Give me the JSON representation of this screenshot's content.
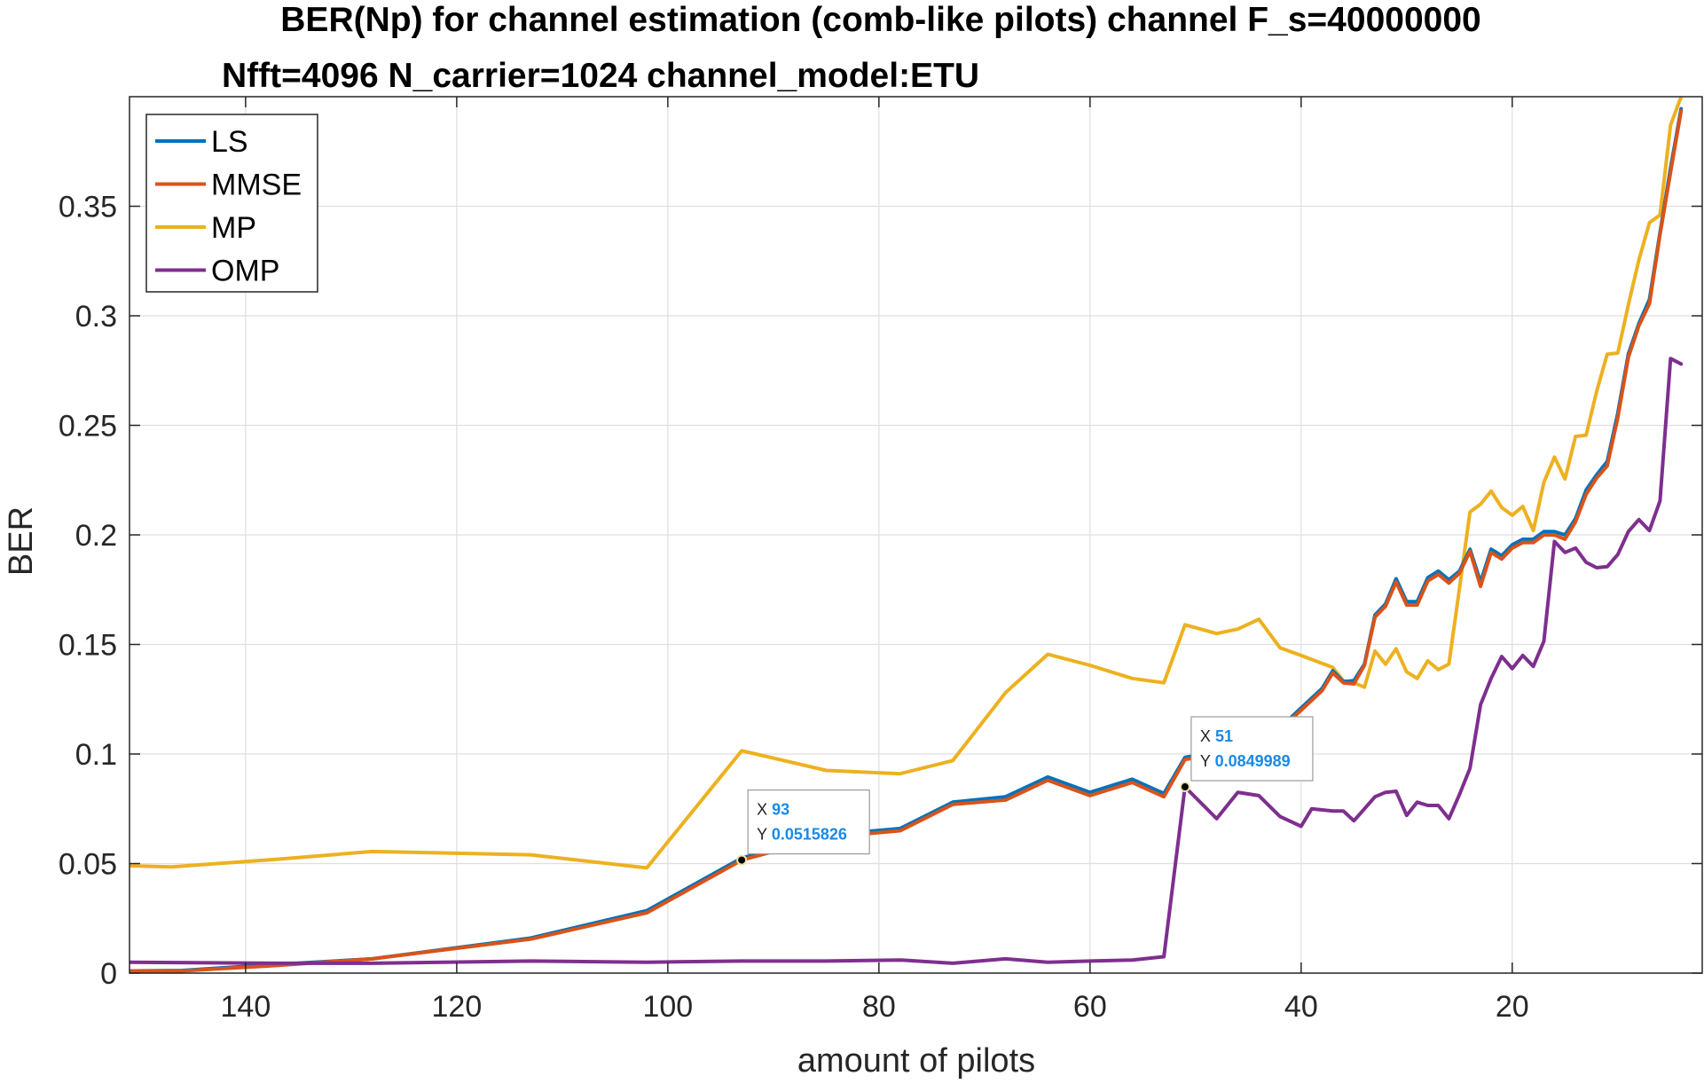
{
  "chart_data": {
    "type": "line",
    "title_line1": "BER(Np) for channel estimation (comb-like pilots) channel F_s=40000000",
    "title_line2": "Nfft=4096 N_carrier=1024 channel_model:ETU",
    "xlabel": "amount of pilots",
    "ylabel": "BER",
    "xlim": [
      151,
      2
    ],
    "ylim": [
      0,
      0.4
    ],
    "x_reversed": true,
    "grid": true,
    "legend_position": "top-left",
    "x_ticks": [
      140,
      120,
      100,
      80,
      60,
      40,
      20
    ],
    "y_ticks": [
      0,
      0.05,
      0.1,
      0.15,
      0.2,
      0.25,
      0.3,
      0.35
    ],
    "x_tick_labels": [
      "140",
      "120",
      "100",
      "80",
      "60",
      "40",
      "20"
    ],
    "y_tick_labels": [
      "0",
      "0.05",
      "0.1",
      "0.15",
      "0.2",
      "0.25",
      "0.3",
      "0.35"
    ],
    "series": [
      {
        "name": "LS",
        "color": "#0072bd",
        "points": [
          [
            151,
            0.001
          ],
          [
            146,
            0.0012
          ],
          [
            137,
            0.004
          ],
          [
            128,
            0.0065
          ],
          [
            113,
            0.016
          ],
          [
            102,
            0.0285
          ],
          [
            93,
            0.0525
          ],
          [
            85,
            0.063
          ],
          [
            78,
            0.066
          ],
          [
            73,
            0.078
          ],
          [
            68,
            0.0805
          ],
          [
            64,
            0.0895
          ],
          [
            60,
            0.0825
          ],
          [
            56,
            0.0885
          ],
          [
            53,
            0.082
          ],
          [
            51,
            0.0985
          ],
          [
            49,
            0.1
          ],
          [
            46,
            0.1045
          ],
          [
            44,
            0.108
          ],
          [
            42,
            0.112
          ],
          [
            40,
            0.121
          ],
          [
            38,
            0.13
          ],
          [
            37,
            0.138
          ],
          [
            36,
            0.133
          ],
          [
            35,
            0.1335
          ],
          [
            34,
            0.141
          ],
          [
            33,
            0.1635
          ],
          [
            32,
            0.1685
          ],
          [
            31,
            0.18
          ],
          [
            30,
            0.1695
          ],
          [
            29,
            0.1695
          ],
          [
            28,
            0.1805
          ],
          [
            27,
            0.1835
          ],
          [
            26,
            0.1795
          ],
          [
            25,
            0.1835
          ],
          [
            24,
            0.1935
          ],
          [
            23,
            0.1785
          ],
          [
            22,
            0.1935
          ],
          [
            21,
            0.1905
          ],
          [
            20,
            0.1955
          ],
          [
            19,
            0.198
          ],
          [
            18,
            0.198
          ],
          [
            17,
            0.2015
          ],
          [
            16,
            0.2015
          ],
          [
            15,
            0.2
          ],
          [
            14,
            0.2075
          ],
          [
            13,
            0.2205
          ],
          [
            12,
            0.2275
          ],
          [
            11,
            0.2335
          ],
          [
            10,
            0.2555
          ],
          [
            9,
            0.2825
          ],
          [
            8,
            0.2965
          ],
          [
            7,
            0.3075
          ],
          [
            6,
            0.338
          ],
          [
            5,
            0.3675
          ],
          [
            4,
            0.3945
          ]
        ]
      },
      {
        "name": "MMSE",
        "color": "#d95319",
        "points": [
          [
            151,
            0.001
          ],
          [
            146,
            0.001
          ],
          [
            137,
            0.0035
          ],
          [
            128,
            0.0065
          ],
          [
            113,
            0.0155
          ],
          [
            102,
            0.0275
          ],
          [
            93,
            0.0515826
          ],
          [
            85,
            0.062
          ],
          [
            78,
            0.065
          ],
          [
            73,
            0.077
          ],
          [
            68,
            0.079
          ],
          [
            64,
            0.088
          ],
          [
            60,
            0.081
          ],
          [
            56,
            0.087
          ],
          [
            53,
            0.0805
          ],
          [
            51,
            0.0975
          ],
          [
            49,
            0.099
          ],
          [
            46,
            0.1035
          ],
          [
            44,
            0.107
          ],
          [
            42,
            0.111
          ],
          [
            40,
            0.12
          ],
          [
            38,
            0.129
          ],
          [
            37,
            0.137
          ],
          [
            36,
            0.1325
          ],
          [
            35,
            0.132
          ],
          [
            34,
            0.1405
          ],
          [
            33,
            0.1625
          ],
          [
            32,
            0.1675
          ],
          [
            31,
            0.1785
          ],
          [
            30,
            0.168
          ],
          [
            29,
            0.168
          ],
          [
            28,
            0.179
          ],
          [
            27,
            0.182
          ],
          [
            26,
            0.178
          ],
          [
            25,
            0.1825
          ],
          [
            24,
            0.1925
          ],
          [
            23,
            0.1765
          ],
          [
            22,
            0.192
          ],
          [
            21,
            0.189
          ],
          [
            20,
            0.194
          ],
          [
            19,
            0.1965
          ],
          [
            18,
            0.1965
          ],
          [
            17,
            0.2
          ],
          [
            16,
            0.2
          ],
          [
            15,
            0.198
          ],
          [
            14,
            0.206
          ],
          [
            13,
            0.2185
          ],
          [
            12,
            0.226
          ],
          [
            11,
            0.2315
          ],
          [
            10,
            0.2535
          ],
          [
            9,
            0.281
          ],
          [
            8,
            0.2955
          ],
          [
            7,
            0.3055
          ],
          [
            6,
            0.337
          ],
          [
            5,
            0.3655
          ],
          [
            4,
            0.3935
          ]
        ]
      },
      {
        "name": "MP",
        "color": "#edb120",
        "points": [
          [
            151,
            0.049
          ],
          [
            147,
            0.0485
          ],
          [
            137,
            0.052
          ],
          [
            128,
            0.0555
          ],
          [
            113,
            0.054
          ],
          [
            102,
            0.048
          ],
          [
            93,
            0.1015
          ],
          [
            85,
            0.0925
          ],
          [
            78,
            0.091
          ],
          [
            73,
            0.097
          ],
          [
            68,
            0.128
          ],
          [
            64,
            0.1455
          ],
          [
            60,
            0.1405
          ],
          [
            56,
            0.1345
          ],
          [
            53,
            0.1325
          ],
          [
            51,
            0.159
          ],
          [
            48,
            0.155
          ],
          [
            46,
            0.157
          ],
          [
            44,
            0.1615
          ],
          [
            42,
            0.1485
          ],
          [
            40,
            0.145
          ],
          [
            37,
            0.1395
          ],
          [
            36,
            0.1335
          ],
          [
            35,
            0.1325
          ],
          [
            34,
            0.1305
          ],
          [
            33,
            0.147
          ],
          [
            32,
            0.141
          ],
          [
            31,
            0.148
          ],
          [
            30,
            0.1375
          ],
          [
            29,
            0.1345
          ],
          [
            28,
            0.1425
          ],
          [
            27,
            0.1385
          ],
          [
            26,
            0.141
          ],
          [
            25,
            0.1755
          ],
          [
            24,
            0.2105
          ],
          [
            23,
            0.214
          ],
          [
            22,
            0.22
          ],
          [
            21,
            0.2125
          ],
          [
            20,
            0.209
          ],
          [
            19,
            0.213
          ],
          [
            18,
            0.202
          ],
          [
            17,
            0.224
          ],
          [
            16,
            0.2355
          ],
          [
            15,
            0.2255
          ],
          [
            14,
            0.245
          ],
          [
            13,
            0.2455
          ],
          [
            12,
            0.2655
          ],
          [
            11,
            0.2825
          ],
          [
            10,
            0.283
          ],
          [
            9,
            0.305
          ],
          [
            8,
            0.3255
          ],
          [
            7,
            0.3425
          ],
          [
            6,
            0.346
          ],
          [
            5,
            0.387
          ],
          [
            4,
            0.4
          ]
        ]
      },
      {
        "name": "OMP",
        "color": "#7e2f8e",
        "points": [
          [
            151,
            0.005
          ],
          [
            137,
            0.0045
          ],
          [
            128,
            0.0045
          ],
          [
            113,
            0.0055
          ],
          [
            102,
            0.005
          ],
          [
            93,
            0.0055
          ],
          [
            85,
            0.0055
          ],
          [
            78,
            0.006
          ],
          [
            73,
            0.0045
          ],
          [
            68,
            0.0065
          ],
          [
            64,
            0.005
          ],
          [
            60,
            0.0055
          ],
          [
            56,
            0.006
          ],
          [
            53,
            0.0075
          ],
          [
            51,
            0.0849989
          ],
          [
            48,
            0.0705
          ],
          [
            46,
            0.0825
          ],
          [
            44,
            0.081
          ],
          [
            42,
            0.0715
          ],
          [
            40,
            0.067
          ],
          [
            39,
            0.075
          ],
          [
            38,
            0.0745
          ],
          [
            37,
            0.074
          ],
          [
            36,
            0.074
          ],
          [
            35,
            0.0695
          ],
          [
            34,
            0.075
          ],
          [
            33,
            0.0805
          ],
          [
            32,
            0.0825
          ],
          [
            31,
            0.083
          ],
          [
            30,
            0.072
          ],
          [
            29,
            0.078
          ],
          [
            28,
            0.0765
          ],
          [
            27,
            0.0765
          ],
          [
            26,
            0.0705
          ],
          [
            25,
            0.0815
          ],
          [
            24,
            0.0935
          ],
          [
            23,
            0.1225
          ],
          [
            22,
            0.1345
          ],
          [
            21,
            0.1445
          ],
          [
            20,
            0.139
          ],
          [
            19,
            0.145
          ],
          [
            18,
            0.14
          ],
          [
            17,
            0.1515
          ],
          [
            16,
            0.197
          ],
          [
            15,
            0.192
          ],
          [
            14,
            0.194
          ],
          [
            13,
            0.1875
          ],
          [
            12,
            0.185
          ],
          [
            11,
            0.1855
          ],
          [
            10,
            0.191
          ],
          [
            9,
            0.2015
          ],
          [
            8,
            0.207
          ],
          [
            7,
            0.202
          ],
          [
            6,
            0.2155
          ],
          [
            5,
            0.2805
          ],
          [
            4,
            0.278
          ]
        ]
      }
    ],
    "datatips": [
      {
        "x": 93,
        "y": 0.0515826,
        "x_label": "X",
        "y_label": "Y",
        "x_text": "93",
        "y_text": "0.0515826"
      },
      {
        "x": 51,
        "y": 0.0849989,
        "x_label": "X",
        "y_label": "Y",
        "x_text": "51",
        "y_text": "0.0849989"
      }
    ]
  }
}
